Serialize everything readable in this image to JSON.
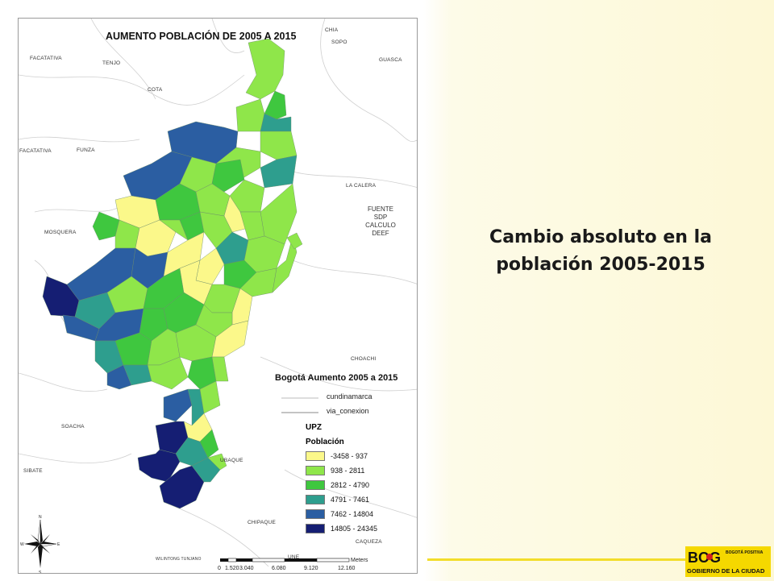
{
  "slide": {
    "title_line1": "Cambio absoluto en la",
    "title_line2": "población 2005-2015"
  },
  "map": {
    "title": "AUMENTO POBLACIÓN DE 2005 A 2015",
    "place_labels": {
      "chia": "CHIA",
      "sopo": "SOPO",
      "facatativa_top": "FACATATIVA",
      "tenjo": "TENJO",
      "guasca": "GUASCA",
      "cota": "COTA",
      "facatativa_mid": "FACATATIVA",
      "funza": "FUNZA",
      "la_calera": "LA CALERA",
      "mosquera": "MOSQUERA",
      "choachi": "CHOACHI",
      "soacha": "SOACHA",
      "sibate": "SIBATE",
      "ubaque": "UBAQUE",
      "chipaque": "CHIPAQUE",
      "caqueza": "CAQUEZA",
      "une": "UNE",
      "wilmington": "WILINTONG TUNJANO"
    },
    "source": [
      "FUENTE",
      "SDP",
      "CALCULO",
      "DEEF"
    ],
    "legend": {
      "title": "Bogotá Aumento 2005 a 2015",
      "line_items": [
        "cundinamarca",
        "via_conexion"
      ],
      "upz_heading": "UPZ",
      "pob_heading": "Población",
      "classes": [
        {
          "label": "-3458 - 937",
          "color": "#fbf88a"
        },
        {
          "label": "938 - 2811",
          "color": "#8fe64a"
        },
        {
          "label": "2812 - 4790",
          "color": "#3fc73f"
        },
        {
          "label": "4791 - 7461",
          "color": "#2e9e8e"
        },
        {
          "label": "7462 - 14804",
          "color": "#2b5ea2"
        },
        {
          "label": "14805 - 24345",
          "color": "#151e73"
        }
      ]
    },
    "compass": {
      "n": "N",
      "s": "S",
      "e": "E",
      "w": "W"
    },
    "scale": {
      "ticks": [
        "0",
        "1.520",
        "3.040",
        "6.080",
        "9.120",
        "12.160"
      ],
      "unit": "Meters"
    }
  },
  "logo": {
    "brand": "BOG",
    "tagline": "GOBIERNO DE LA CIUDAD",
    "side": "BOGOTÁ POSITIVA"
  }
}
